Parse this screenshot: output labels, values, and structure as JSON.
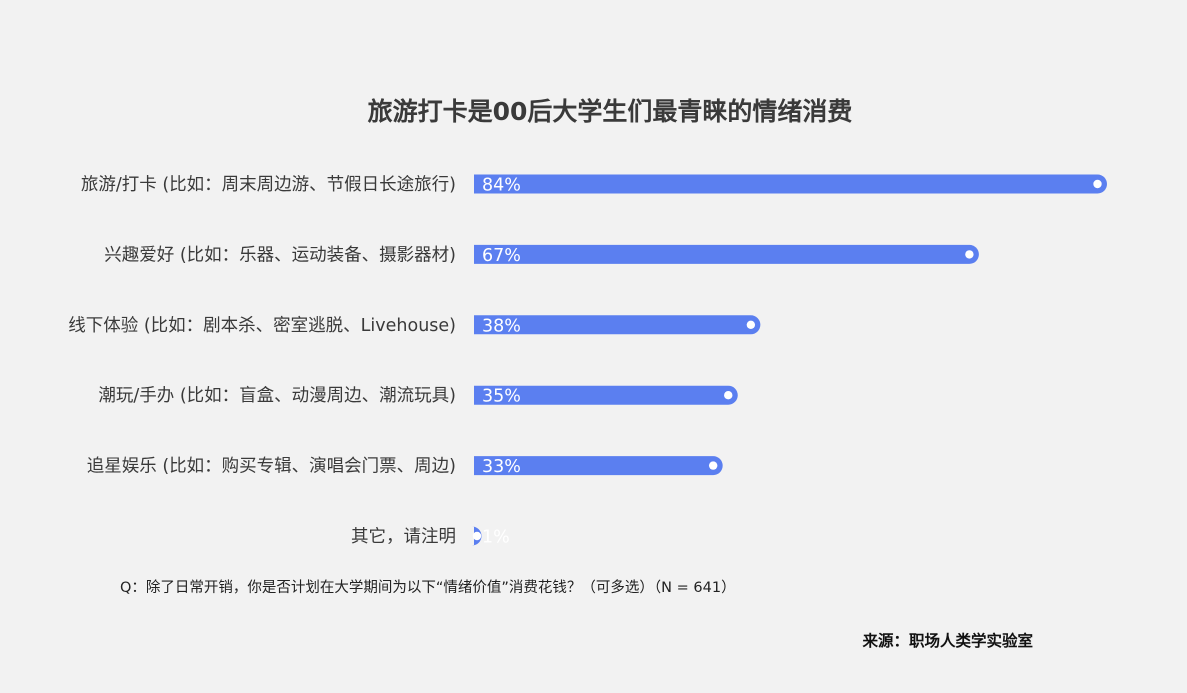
{
  "chart_data": {
    "type": "bar",
    "orientation": "horizontal",
    "title": "旅游打卡是00后大学生们最青睐的情绪消费",
    "categories": [
      "旅游/打卡 (比如：周末周边游、节假日长途旅行)",
      "兴趣爱好 (比如：乐器、运动装备、摄影器材)",
      "线下体验 (比如：剧本杀、密室逃脱、Livehouse)",
      "潮玩/手办 (比如：盲盒、动漫周边、潮流玩具)",
      "追星娱乐 (比如：购买专辑、演唱会门票、周边)",
      "其它，请注明"
    ],
    "values": [
      84,
      67,
      38,
      35,
      33,
      1
    ],
    "value_labels": [
      "84%",
      "67%",
      "38%",
      "35%",
      "33%",
      "1%"
    ],
    "bar_color": "#5b7ff0",
    "xlim": [
      0,
      84
    ],
    "grid": false,
    "legend": "none"
  },
  "note": "Q：除了日常开销，你是否计划在大学期间为以下“情绪价值”消费花钱？（可多选）（N = 641）",
  "source": "来源：职场人类学实验室"
}
